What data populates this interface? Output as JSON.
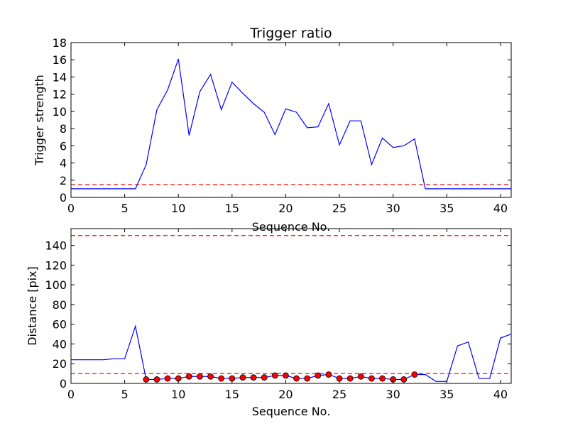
{
  "chart_data": [
    {
      "type": "line",
      "title": "Trigger ratio",
      "xlabel": "Sequence No.",
      "ylabel": "Trigger strength",
      "xlim": [
        0,
        41
      ],
      "ylim": [
        0,
        18
      ],
      "xticks": [
        0,
        5,
        10,
        15,
        20,
        25,
        30,
        35,
        40
      ],
      "yticks": [
        0,
        2,
        4,
        6,
        8,
        10,
        12,
        14,
        16,
        18
      ],
      "grid": false,
      "colors": {
        "line": "#0000ff",
        "threshold": "#ff0000"
      },
      "series": [
        {
          "style": "line",
          "x": [
            0,
            1,
            2,
            3,
            4,
            5,
            6,
            7,
            8,
            9,
            10,
            11,
            12,
            13,
            14,
            15,
            16,
            17,
            18,
            19,
            20,
            21,
            22,
            23,
            24,
            25,
            26,
            27,
            28,
            29,
            30,
            31,
            32,
            33,
            34,
            35,
            36,
            37,
            38,
            39,
            40,
            41
          ],
          "y": [
            1,
            1,
            1,
            1,
            1,
            1,
            1,
            3.8,
            10.2,
            12.5,
            16.1,
            7.2,
            12.3,
            14.3,
            10.2,
            13.4,
            12.1,
            10.9,
            9.9,
            7.3,
            10.3,
            9.9,
            8.1,
            8.2,
            10.9,
            6.1,
            8.9,
            8.9,
            3.8,
            6.9,
            5.8,
            6.0,
            6.8,
            1,
            1,
            1,
            1,
            1,
            1,
            1,
            1,
            1
          ]
        }
      ],
      "thresholds": [
        1.5
      ]
    },
    {
      "type": "line",
      "title": "",
      "xlabel": "Sequence No.",
      "ylabel": "Distance [pix]",
      "xlim": [
        0,
        41
      ],
      "ylim": [
        0,
        157
      ],
      "xticks": [
        0,
        5,
        10,
        15,
        20,
        25,
        30,
        35,
        40
      ],
      "yticks": [
        0,
        20,
        40,
        60,
        80,
        100,
        120,
        140
      ],
      "grid": false,
      "colors": {
        "line": "#0000ff",
        "threshold": "#ff0000",
        "marker": "#ff0000"
      },
      "series": [
        {
          "style": "line",
          "x": [
            0,
            1,
            2,
            3,
            4,
            5,
            6,
            7,
            8,
            9,
            10,
            11,
            12,
            13,
            14,
            15,
            16,
            17,
            18,
            19,
            20,
            21,
            22,
            23,
            24,
            25,
            26,
            27,
            28,
            29,
            30,
            31,
            32,
            33,
            34,
            35,
            36,
            37,
            38,
            39,
            40,
            41
          ],
          "y": [
            24,
            24,
            24,
            24,
            25,
            25,
            58,
            4,
            4,
            5,
            5,
            7,
            7,
            7,
            5,
            5,
            6,
            6,
            6,
            8,
            8,
            5,
            5,
            8,
            9,
            5,
            5,
            7,
            5,
            5,
            4,
            4,
            9,
            9,
            2,
            2,
            38,
            42,
            5,
            5,
            46,
            50
          ]
        },
        {
          "style": "markers",
          "x": [
            7,
            8,
            9,
            10,
            11,
            12,
            13,
            14,
            15,
            16,
            17,
            18,
            19,
            20,
            21,
            22,
            23,
            24,
            25,
            26,
            27,
            28,
            29,
            30,
            31,
            32
          ],
          "y": [
            4,
            4,
            5,
            5,
            7,
            7,
            7,
            5,
            5,
            6,
            6,
            6,
            8,
            8,
            5,
            5,
            8,
            9,
            5,
            5,
            7,
            5,
            5,
            4,
            4,
            9
          ]
        }
      ],
      "thresholds": [
        150,
        10
      ]
    }
  ]
}
